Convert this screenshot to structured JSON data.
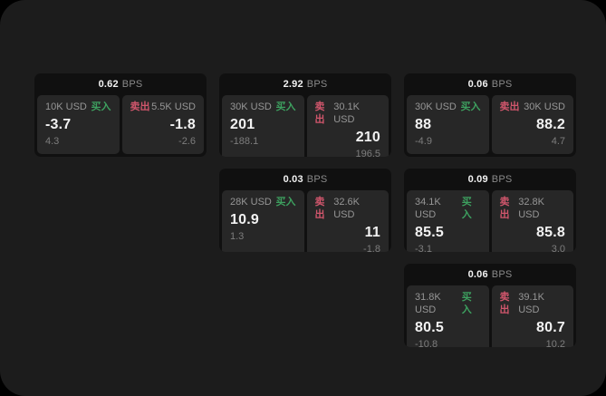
{
  "labels": {
    "buy": "买入",
    "sell": "卖出",
    "bps_unit": "BPS"
  },
  "colors": {
    "window_bg": "#1c1c1c",
    "card_bg": "#101010",
    "cell_bg": "#272727",
    "buy": "#3da05f",
    "sell": "#d0566c",
    "text_primary": "#f2f2f2",
    "text_secondary": "#969696"
  },
  "cards": [
    {
      "row": 1,
      "col": 1,
      "bps": "0.62",
      "buy": {
        "amount": "10K USD",
        "price": "-3.7",
        "delta": "4.3"
      },
      "sell": {
        "amount": "5.5K USD",
        "price": "-1.8",
        "delta": "-2.6"
      }
    },
    {
      "row": 1,
      "col": 2,
      "bps": "2.92",
      "buy": {
        "amount": "30K USD",
        "price": "201",
        "delta": "-188.1"
      },
      "sell": {
        "amount": "30.1K USD",
        "price": "210",
        "delta": "196.5"
      }
    },
    {
      "row": 1,
      "col": 3,
      "bps": "0.06",
      "buy": {
        "amount": "30K USD",
        "price": "88",
        "delta": "-4.9"
      },
      "sell": {
        "amount": "30K USD",
        "price": "88.2",
        "delta": "4.7"
      }
    },
    {
      "row": 2,
      "col": 2,
      "bps": "0.03",
      "buy": {
        "amount": "28K USD",
        "price": "10.9",
        "delta": "1.3"
      },
      "sell": {
        "amount": "32.6K USD",
        "price": "11",
        "delta": "-1.8"
      }
    },
    {
      "row": 2,
      "col": 3,
      "bps": "0.09",
      "buy": {
        "amount": "34.1K USD",
        "price": "85.5",
        "delta": "-3.1"
      },
      "sell": {
        "amount": "32.8K USD",
        "price": "85.8",
        "delta": "3.0"
      }
    },
    {
      "row": 3,
      "col": 3,
      "bps": "0.06",
      "buy": {
        "amount": "31.8K USD",
        "price": "80.5",
        "delta": "-10.8"
      },
      "sell": {
        "amount": "39.1K USD",
        "price": "80.7",
        "delta": "10.2"
      }
    }
  ]
}
